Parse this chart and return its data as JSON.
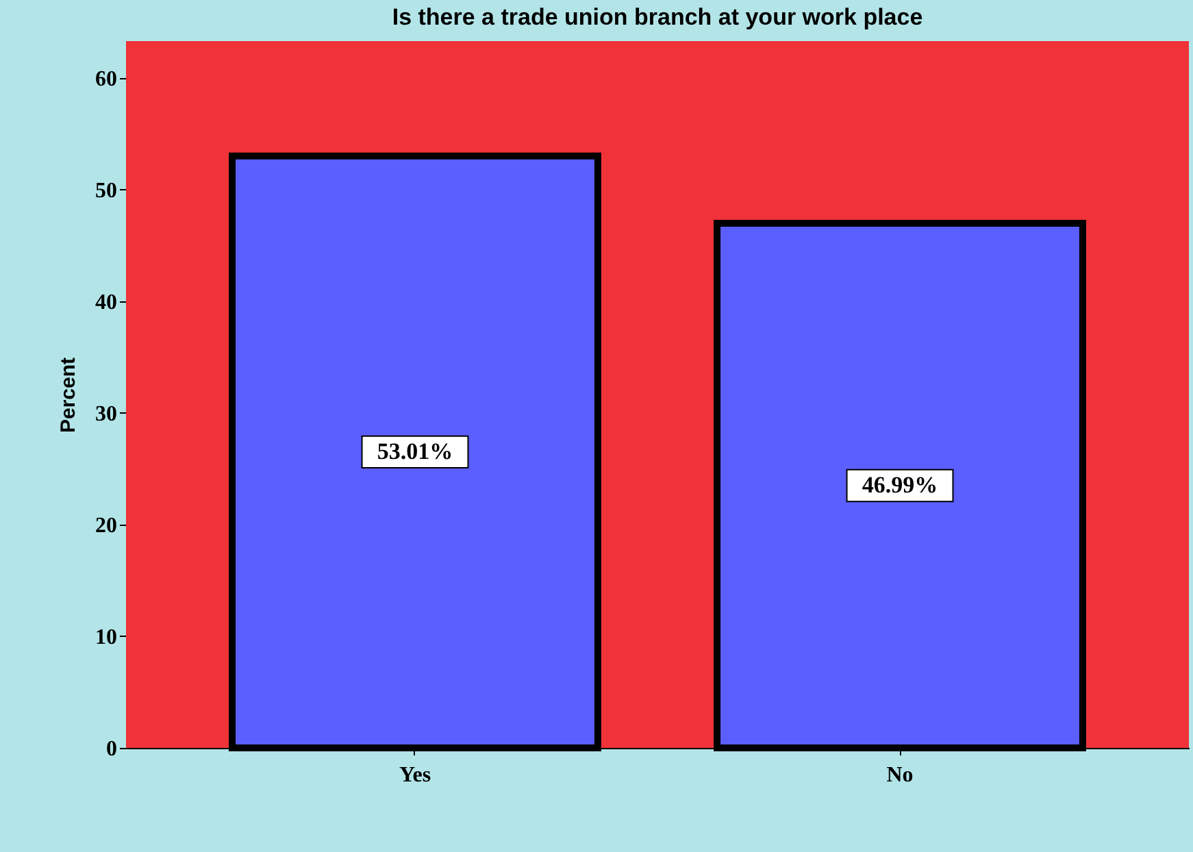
{
  "chart_data": {
    "type": "bar",
    "title": "Is there a trade union branch at your work place",
    "ylabel": "Percent",
    "categories": [
      "Yes",
      "No"
    ],
    "values": [
      53.01,
      46.99
    ],
    "value_labels": [
      "53.01%",
      "46.99%"
    ],
    "color": "#5b5fff",
    "bands": [
      {
        "axis": "y",
        "from": 0,
        "to": 63.3,
        "color": "#ef3339"
      }
    ],
    "ylim": [
      0,
      63.3
    ],
    "yticks": [
      0,
      10,
      20,
      30,
      40,
      50,
      60
    ],
    "grid": false
  }
}
